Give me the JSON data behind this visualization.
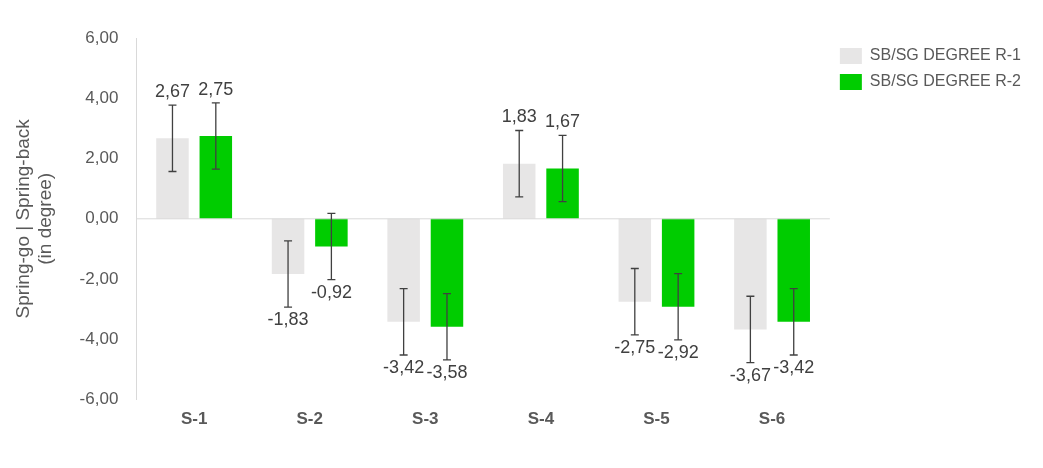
{
  "chart_data": {
    "type": "bar",
    "ylabel": "Spring-go | Spring-back\n(in degree)",
    "categories": [
      "S-1",
      "S-2",
      "S-3",
      "S-4",
      "S-5",
      "S-6"
    ],
    "series": [
      {
        "name": "SB/SG DEGREE R-1",
        "color": "#e7e6e6",
        "values": [
          2.67,
          -1.83,
          -3.42,
          1.83,
          -2.75,
          -3.67
        ],
        "value_labels": [
          "2,67",
          "-1,83",
          "-3,42",
          "1,83",
          "-2,75",
          "-3,67"
        ],
        "errors": [
          1.1,
          1.1,
          1.1,
          1.1,
          1.1,
          1.1
        ]
      },
      {
        "name": "SB/SG DEGREE R-2",
        "color": "#00cc00",
        "values": [
          2.75,
          -0.92,
          -3.58,
          1.67,
          -2.92,
          -3.42
        ],
        "value_labels": [
          "2,75",
          "-0,92",
          "-3,58",
          "1,67",
          "-2,92",
          "-3,42"
        ],
        "errors": [
          1.1,
          1.1,
          1.1,
          1.1,
          1.1,
          1.1
        ]
      }
    ],
    "ylim": [
      -6,
      6
    ],
    "yticks": [
      {
        "value": -6,
        "label": "-6,00"
      },
      {
        "value": -4,
        "label": "-4,00"
      },
      {
        "value": -2,
        "label": "-2,00"
      },
      {
        "value": 0,
        "label": "0,00"
      },
      {
        "value": 2,
        "label": "2,00"
      },
      {
        "value": 4,
        "label": "4,00"
      },
      {
        "value": 6,
        "label": "6,00"
      }
    ],
    "grid": false,
    "legend": "top right",
    "data_labels": true,
    "ref_lines": [
      {
        "axis": "y",
        "value": 0,
        "color": "#d9d9d9"
      }
    ]
  }
}
